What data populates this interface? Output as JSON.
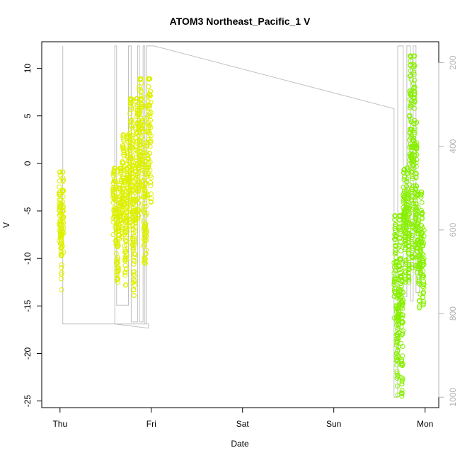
{
  "chart_data": {
    "type": "scatter",
    "title": "ATOM3 Northeast_Pacific_1 V",
    "xlabel": "Date",
    "ylabel": "V",
    "x_ticks": [
      "Thu",
      "Fri",
      "Sat",
      "Sun",
      "Mon"
    ],
    "xlim_days": [
      -0.2,
      4.15
    ],
    "ylim": [
      -25.7,
      12.8
    ],
    "y_ticks": [
      10,
      5,
      0,
      -5,
      -10,
      -15,
      -20,
      -25
    ],
    "y2_ticks": [
      200,
      400,
      600,
      800,
      1000
    ],
    "y2lim_reversed": [
      150,
      1025
    ],
    "grid": false,
    "series": [
      {
        "marker_color": "#ddf000",
        "clusters": [
          {
            "x_start": -0.01,
            "x_end": 0.04,
            "lo": -13.3,
            "hi": -0.9,
            "n": 110
          },
          {
            "x_start": 0.58,
            "x_end": 0.68,
            "lo": -12.5,
            "hi": -0.5,
            "n": 160
          },
          {
            "x_start": 0.68,
            "x_end": 0.76,
            "lo": -12.8,
            "hi": 3.0,
            "n": 150
          },
          {
            "x_start": 0.76,
            "x_end": 0.86,
            "lo": -13.9,
            "hi": 6.8,
            "n": 220
          },
          {
            "x_start": 0.86,
            "x_end": 1.0,
            "lo": -10.5,
            "hi": 8.9,
            "n": 240
          }
        ]
      },
      {
        "marker_color": "#88f000",
        "clusters": [
          {
            "x_start": 3.66,
            "x_end": 3.76,
            "lo": -24.5,
            "hi": -5.5,
            "n": 230
          },
          {
            "x_start": 3.76,
            "x_end": 3.83,
            "lo": -12.5,
            "hi": -0.5,
            "n": 150
          },
          {
            "x_start": 3.83,
            "x_end": 3.91,
            "lo": -11.0,
            "hi": 11.3,
            "n": 200
          },
          {
            "x_start": 3.91,
            "x_end": 3.99,
            "lo": -15.5,
            "hi": -3.0,
            "n": 140
          }
        ]
      }
    ],
    "depth_line": {
      "color": "#c0c0c0",
      "points": [
        [
          0.03,
          825
        ],
        [
          0.03,
          160
        ],
        [
          0.03,
          825
        ],
        [
          0.97,
          825
        ],
        [
          0.97,
          835
        ],
        [
          0.6,
          825
        ],
        [
          0.6,
          160
        ],
        [
          0.62,
          160
        ],
        [
          0.62,
          780
        ],
        [
          0.75,
          780
        ],
        [
          0.75,
          160
        ],
        [
          0.78,
          160
        ],
        [
          0.78,
          820
        ],
        [
          0.85,
          820
        ],
        [
          0.85,
          160
        ],
        [
          0.87,
          160
        ],
        [
          0.87,
          820
        ],
        [
          0.91,
          820
        ],
        [
          0.91,
          160
        ],
        [
          0.93,
          160
        ],
        [
          0.93,
          825
        ],
        [
          0.95,
          825
        ],
        [
          0.95,
          160
        ],
        [
          1.03,
          160
        ],
        [
          3.66,
          310
        ],
        [
          3.66,
          1000
        ],
        [
          3.7,
          1000
        ],
        [
          3.7,
          160
        ],
        [
          3.76,
          160
        ],
        [
          3.76,
          760
        ],
        [
          3.8,
          760
        ],
        [
          3.8,
          160
        ],
        [
          3.84,
          160
        ],
        [
          3.84,
          770
        ],
        [
          3.87,
          770
        ],
        [
          3.87,
          160
        ],
        [
          3.9,
          160
        ],
        [
          3.9,
          750
        ],
        [
          3.94,
          750
        ],
        [
          3.94,
          660
        ],
        [
          3.97,
          660
        ]
      ]
    }
  }
}
